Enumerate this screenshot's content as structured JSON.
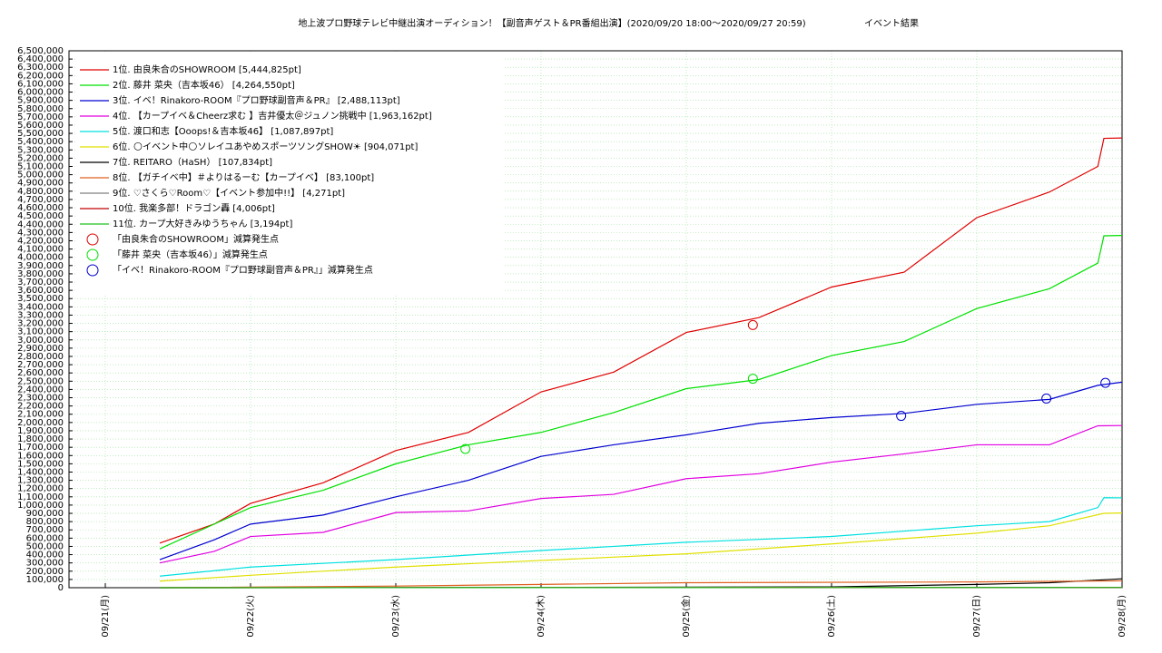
{
  "chart_data": {
    "type": "line",
    "title": "地上波プロ野球テレビ中継出演オーディション！【副音声ゲスト＆PR番組出演】(2020/09/20 18:00～2020/09/27 20:59)",
    "subtitle": "イベント結果",
    "grid": true,
    "xlim": [
      "09/20 18:00",
      "09/28 00:00"
    ],
    "xticks": [
      {
        "value": "09/21 00:00",
        "label": "09/21(月)"
      },
      {
        "value": "09/22 00:00",
        "label": "09/22(火)"
      },
      {
        "value": "09/23 00:00",
        "label": "09/23(水)"
      },
      {
        "value": "09/24 00:00",
        "label": "09/24(木)"
      },
      {
        "value": "09/25 00:00",
        "label": "09/25(金)"
      },
      {
        "value": "09/26 00:00",
        "label": "09/26(土)"
      },
      {
        "value": "09/27 00:00",
        "label": "09/27(日)"
      },
      {
        "value": "09/28 00:00",
        "label": "09/28(月)"
      }
    ],
    "ylim": [
      0,
      6500000
    ],
    "yticks": [
      0,
      {
        "value": 100000,
        "label": "100,000"
      },
      {
        "value": 200000,
        "label": "200,000"
      },
      {
        "value": 300000,
        "label": "300,000"
      },
      {
        "value": 400000,
        "label": "400,000"
      },
      {
        "value": 500000,
        "label": "500,000"
      },
      {
        "value": 600000,
        "label": "600,000"
      },
      {
        "value": 700000,
        "label": "700,000"
      },
      {
        "value": 800000,
        "label": "800,000"
      },
      {
        "value": 900000,
        "label": "900,000"
      },
      {
        "value": 1000000,
        "label": "1,000,000"
      },
      {
        "value": 1100000,
        "label": "1,100,000"
      },
      {
        "value": 1200000,
        "label": "1,200,000"
      },
      {
        "value": 1300000,
        "label": "1,300,000"
      },
      {
        "value": 1400000,
        "label": "1,400,000"
      },
      {
        "value": 1500000,
        "label": "1,500,000"
      },
      {
        "value": 1600000,
        "label": "1,600,000"
      },
      {
        "value": 1700000,
        "label": "1,700,000"
      },
      {
        "value": 1800000,
        "label": "1,800,000"
      },
      {
        "value": 1900000,
        "label": "1,900,000"
      },
      {
        "value": 2000000,
        "label": "2,000,000"
      },
      {
        "value": 2100000,
        "label": "2,100,000"
      },
      {
        "value": 2200000,
        "label": "2,200,000"
      },
      {
        "value": 2300000,
        "label": "2,300,000"
      },
      {
        "value": 2400000,
        "label": "2,400,000"
      },
      {
        "value": 2500000,
        "label": "2,500,000"
      },
      {
        "value": 2600000,
        "label": "2,600,000"
      },
      {
        "value": 2700000,
        "label": "2,700,000"
      },
      {
        "value": 2800000,
        "label": "2,800,000"
      },
      {
        "value": 2900000,
        "label": "2,900,000"
      },
      {
        "value": 3000000,
        "label": "3,000,000"
      },
      {
        "value": 3100000,
        "label": "3,100,000"
      },
      {
        "value": 3200000,
        "label": "3,200,000"
      },
      {
        "value": 3300000,
        "label": "3,300,000"
      },
      {
        "value": 3400000,
        "label": "3,400,000"
      },
      {
        "value": 3500000,
        "label": "3,500,000"
      },
      {
        "value": 3600000,
        "label": "3,600,000"
      },
      {
        "value": 3700000,
        "label": "3,700,000"
      },
      {
        "value": 3800000,
        "label": "3,800,000"
      },
      {
        "value": 3900000,
        "label": "3,900,000"
      },
      {
        "value": 4000000,
        "label": "4,000,000"
      },
      {
        "value": 4100000,
        "label": "4,100,000"
      },
      {
        "value": 4200000,
        "label": "4,200,000"
      },
      {
        "value": 4300000,
        "label": "4,300,000"
      },
      {
        "value": 4400000,
        "label": "4,400,000"
      },
      {
        "value": 4500000,
        "label": "4,500,000"
      },
      {
        "value": 4600000,
        "label": "4,600,000"
      },
      {
        "value": 4700000,
        "label": "4,700,000"
      },
      {
        "value": 4800000,
        "label": "4,800,000"
      },
      {
        "value": 4900000,
        "label": "4,900,000"
      },
      {
        "value": 5000000,
        "label": "5,000,000"
      },
      {
        "value": 5100000,
        "label": "5,100,000"
      },
      {
        "value": 5200000,
        "label": "5,200,000"
      },
      {
        "value": 5300000,
        "label": "5,300,000"
      },
      {
        "value": 5400000,
        "label": "5,400,000"
      },
      {
        "value": 5500000,
        "label": "5,500,000"
      },
      {
        "value": 5600000,
        "label": "5,600,000"
      },
      {
        "value": 5700000,
        "label": "5,700,000"
      },
      {
        "value": 5800000,
        "label": "5,800,000"
      },
      {
        "value": 5900000,
        "label": "5,900,000"
      },
      {
        "value": 6000000,
        "label": "6,000,000"
      },
      {
        "value": 6100000,
        "label": "6,100,000"
      },
      {
        "value": 6200000,
        "label": "6,200,000"
      },
      {
        "value": 6300000,
        "label": "6,300,000"
      },
      {
        "value": 6400000,
        "label": "6,400,000"
      },
      {
        "value": 6500000,
        "label": "6,500,000"
      }
    ],
    "series": [
      {
        "name": "1位. 由良朱合のSHOWROOM [5,444,825pt]",
        "color": "#e00000",
        "x": [
          "09/21 09:00",
          "09/21 18:00",
          "09/22 00:00",
          "09/22 12:00",
          "09/23 00:00",
          "09/23 12:00",
          "09/24 00:00",
          "09/24 12:00",
          "09/25 00:00",
          "09/25 12:00",
          "09/26 00:00",
          "09/26 12:00",
          "09/27 00:00",
          "09/27 12:00",
          "09/27 20:00",
          "09/27 21:00",
          "09/28 00:00"
        ],
        "values": [
          540000,
          770000,
          1020000,
          1270000,
          1660000,
          1880000,
          2370000,
          2610000,
          3090000,
          3270000,
          3640000,
          3820000,
          4480000,
          4790000,
          5100000,
          5440000,
          5444825
        ]
      },
      {
        "name": "2位. 藤井 菜央（吉本坂46） [4,264,550pt]",
        "color": "#00e000",
        "x": [
          "09/21 09:00",
          "09/21 18:00",
          "09/22 00:00",
          "09/22 12:00",
          "09/23 00:00",
          "09/23 12:00",
          "09/24 00:00",
          "09/24 12:00",
          "09/25 00:00",
          "09/25 12:00",
          "09/26 00:00",
          "09/26 12:00",
          "09/27 00:00",
          "09/27 12:00",
          "09/27 20:00",
          "09/27 21:00",
          "09/28 00:00"
        ],
        "values": [
          470000,
          770000,
          970000,
          1180000,
          1500000,
          1730000,
          1880000,
          2120000,
          2410000,
          2520000,
          2810000,
          2980000,
          3380000,
          3620000,
          3930000,
          4260000,
          4264550
        ]
      },
      {
        "name": "3位. イベ！Rinakoro-ROOM『プロ野球副音声＆PR』 [2,488,113pt]",
        "color": "#0000d0",
        "x": [
          "09/21 09:00",
          "09/21 18:00",
          "09/22 00:00",
          "09/22 12:00",
          "09/23 00:00",
          "09/23 12:00",
          "09/24 00:00",
          "09/24 12:00",
          "09/25 00:00",
          "09/25 12:00",
          "09/26 00:00",
          "09/26 12:00",
          "09/27 00:00",
          "09/27 12:00",
          "09/27 20:00",
          "09/28 00:00"
        ],
        "values": [
          340000,
          580000,
          770000,
          880000,
          1100000,
          1300000,
          1590000,
          1730000,
          1850000,
          1990000,
          2060000,
          2110000,
          2220000,
          2280000,
          2450000,
          2488113
        ]
      },
      {
        "name": "4位. 【カープイベ＆Cheerz求む 】吉井優太＠ジュノン挑戦中 [1,963,162pt]",
        "color": "#e000e0",
        "x": [
          "09/21 09:00",
          "09/21 18:00",
          "09/22 00:00",
          "09/22 12:00",
          "09/23 00:00",
          "09/23 12:00",
          "09/24 00:00",
          "09/24 12:00",
          "09/25 00:00",
          "09/25 12:00",
          "09/26 00:00",
          "09/26 12:00",
          "09/27 00:00",
          "09/27 12:00",
          "09/27 20:00",
          "09/28 00:00"
        ],
        "values": [
          300000,
          440000,
          620000,
          670000,
          910000,
          930000,
          1080000,
          1130000,
          1320000,
          1380000,
          1520000,
          1620000,
          1730000,
          1730000,
          1960000,
          1963162
        ]
      },
      {
        "name": "5位. 渡口和志【Ooops!＆吉本坂46】 [1,087,897pt]",
        "color": "#00e0e0",
        "x": [
          "09/21 09:00",
          "09/22 00:00",
          "09/23 00:00",
          "09/24 00:00",
          "09/25 00:00",
          "09/26 00:00",
          "09/27 00:00",
          "09/27 12:00",
          "09/27 20:00",
          "09/27 21:00",
          "09/28 00:00"
        ],
        "values": [
          140000,
          250000,
          340000,
          450000,
          550000,
          620000,
          750000,
          800000,
          970000,
          1090000,
          1087897
        ]
      },
      {
        "name": "6位. 🌕イベント中🌕ソレイユあやめスポーツソングSHOW☀ [904,071pt]",
        "color": "#e0e000",
        "x": [
          "09/21 09:00",
          "09/22 00:00",
          "09/23 00:00",
          "09/24 00:00",
          "09/25 00:00",
          "09/26 00:00",
          "09/27 00:00",
          "09/27 12:00",
          "09/27 21:00",
          "09/28 00:00"
        ],
        "values": [
          80000,
          150000,
          250000,
          330000,
          410000,
          530000,
          660000,
          750000,
          900000,
          904071
        ]
      },
      {
        "name": "7位. REITARO（HaSH） [107,834pt]",
        "color": "#000000",
        "x": [
          "09/21 09:00",
          "09/24 00:00",
          "09/26 00:00",
          "09/27 00:00",
          "09/27 12:00",
          "09/28 00:00"
        ],
        "values": [
          0,
          3000,
          10000,
          40000,
          60000,
          107834
        ]
      },
      {
        "name": "8位. 【ガチイベ中】＃よりはるーむ【カープイベ】 [83,100pt]",
        "color": "#e06020",
        "x": [
          "09/21 09:00",
          "09/23 00:00",
          "09/24 00:00",
          "09/25 00:00",
          "09/27 00:00",
          "09/28 00:00"
        ],
        "values": [
          0,
          20000,
          40000,
          60000,
          70000,
          83100
        ]
      },
      {
        "name": "9位. ♡さくら♡Room♡【イベント参加中!!】 [4,271pt]",
        "color": "#808080",
        "x": [
          "09/21 09:00",
          "09/28 00:00"
        ],
        "values": [
          0,
          4271
        ]
      },
      {
        "name": "10位. 我楽多部！ドラゴン轟 [4,006pt]",
        "color": "#c00000",
        "x": [
          "09/21 09:00",
          "09/28 00:00"
        ],
        "values": [
          0,
          4006
        ]
      },
      {
        "name": "11位. カープ大好きみゆうちゃん [3,194pt]",
        "color": "#20c020",
        "x": [
          "09/21 09:00",
          "09/28 00:00"
        ],
        "values": [
          0,
          3194
        ]
      }
    ],
    "drop_points": [
      {
        "name": "「由良朱合のSHOWROOM」減算発生点",
        "color": "#e00000",
        "x": [
          "09/25 11:00"
        ],
        "values": [
          3180000
        ]
      },
      {
        "name": "「藤井 菜央（吉本坂46）」減算発生点",
        "color": "#00e000",
        "x": [
          "09/23 11:30",
          "09/25 11:00"
        ],
        "values": [
          1680000,
          2530000
        ]
      },
      {
        "name": "「イベ！Rinakoro-ROOM『プロ野球副音声＆PR』」減算発生点",
        "color": "#0000d0",
        "x": [
          "09/26 11:30",
          "09/27 11:30",
          "09/27 21:15"
        ],
        "values": [
          2080000,
          2290000,
          2480000
        ]
      }
    ]
  }
}
